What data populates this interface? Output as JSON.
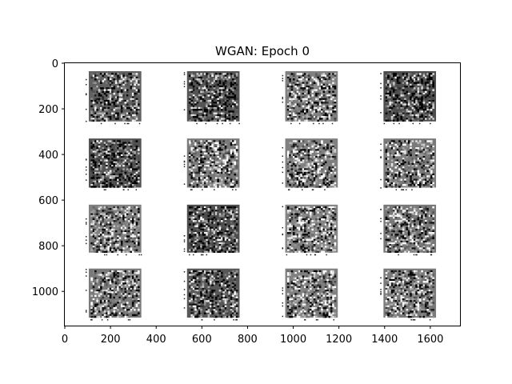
{
  "chart_data": {
    "type": "heatmap",
    "title": "WGAN: Epoch 0",
    "xlabel": "",
    "ylabel": "",
    "xlim": [
      0,
      1730
    ],
    "ylim": [
      1150,
      0
    ],
    "x_ticks": [
      {
        "value": 0,
        "label": "0"
      },
      {
        "value": 200,
        "label": "200"
      },
      {
        "value": 400,
        "label": "400"
      },
      {
        "value": 600,
        "label": "600"
      },
      {
        "value": 800,
        "label": "800"
      },
      {
        "value": 1000,
        "label": "1000"
      },
      {
        "value": 1200,
        "label": "1200"
      },
      {
        "value": 1400,
        "label": "1400"
      },
      {
        "value": 1600,
        "label": "1600"
      }
    ],
    "y_ticks": [
      {
        "value": 0,
        "label": "0"
      },
      {
        "value": 200,
        "label": "200"
      },
      {
        "value": 400,
        "label": "400"
      },
      {
        "value": 600,
        "label": "600"
      },
      {
        "value": 800,
        "label": "800"
      },
      {
        "value": 1000,
        "label": "1000"
      }
    ],
    "grid": false,
    "colormap": "gray",
    "panels": {
      "rows": 4,
      "cols": 4,
      "x_ranges": [
        [
          105,
          335
        ],
        [
          535,
          765
        ],
        [
          965,
          1195
        ],
        [
          1395,
          1625
        ]
      ],
      "y_ranges": [
        [
          35,
          255
        ],
        [
          330,
          545
        ],
        [
          620,
          830
        ],
        [
          900,
          1115
        ]
      ],
      "base_gray": [
        [
          0.38,
          0.33,
          0.5,
          0.3
        ],
        [
          0.32,
          0.48,
          0.5,
          0.48
        ],
        [
          0.5,
          0.3,
          0.52,
          0.47
        ],
        [
          0.48,
          0.34,
          0.5,
          0.48
        ]
      ]
    }
  }
}
